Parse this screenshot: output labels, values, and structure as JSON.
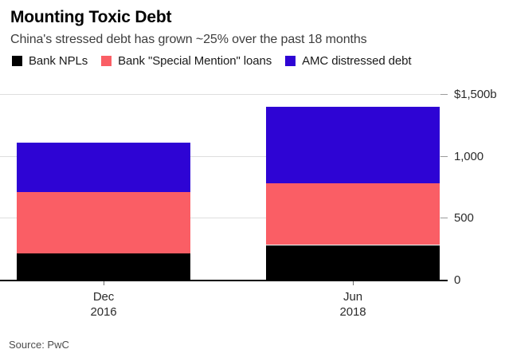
{
  "header": {
    "title": "Mounting Toxic Debt",
    "subtitle": "China's stressed debt has grown ~25% over the past 18 months"
  },
  "legend": [
    {
      "label": "Bank NPLs",
      "color": "#000000"
    },
    {
      "label": "Bank \"Special Mention\" loans",
      "color": "#fa5e65"
    },
    {
      "label": "AMC distressed debt",
      "color": "#2e04d4"
    }
  ],
  "source": "Source: PwC",
  "colors": {
    "bar_black": "#000000",
    "bar_pink": "#fa5e65",
    "bar_blue": "#2e04d4",
    "gridline": "#dedede",
    "axis_line": "#000000"
  },
  "chart_data": {
    "type": "bar",
    "stacked": true,
    "title": "Mounting Toxic Debt",
    "subtitle": "China's stressed debt has grown ~25% over the past 18 months",
    "categories": [
      [
        "Dec",
        "2016"
      ],
      [
        "Jun",
        "2018"
      ]
    ],
    "series": [
      {
        "name": "Bank NPLs",
        "color": "#000000",
        "values": [
          210,
          280
        ]
      },
      {
        "name": "Bank \"Special Mention\" loans",
        "color": "#fa5e65",
        "values": [
          500,
          500
        ]
      },
      {
        "name": "AMC distressed debt",
        "color": "#2e04d4",
        "values": [
          400,
          620
        ]
      }
    ],
    "totals": [
      1110,
      1400
    ],
    "ylim": [
      0,
      1500
    ],
    "yticks": [
      {
        "value": 0,
        "label": "0"
      },
      {
        "value": 500,
        "label": "500"
      },
      {
        "value": 1000,
        "label": "1,000"
      },
      {
        "value": 1500,
        "label": "$1,500b"
      }
    ],
    "grid": true,
    "legend_position": "top",
    "source": "Source: PwC"
  }
}
